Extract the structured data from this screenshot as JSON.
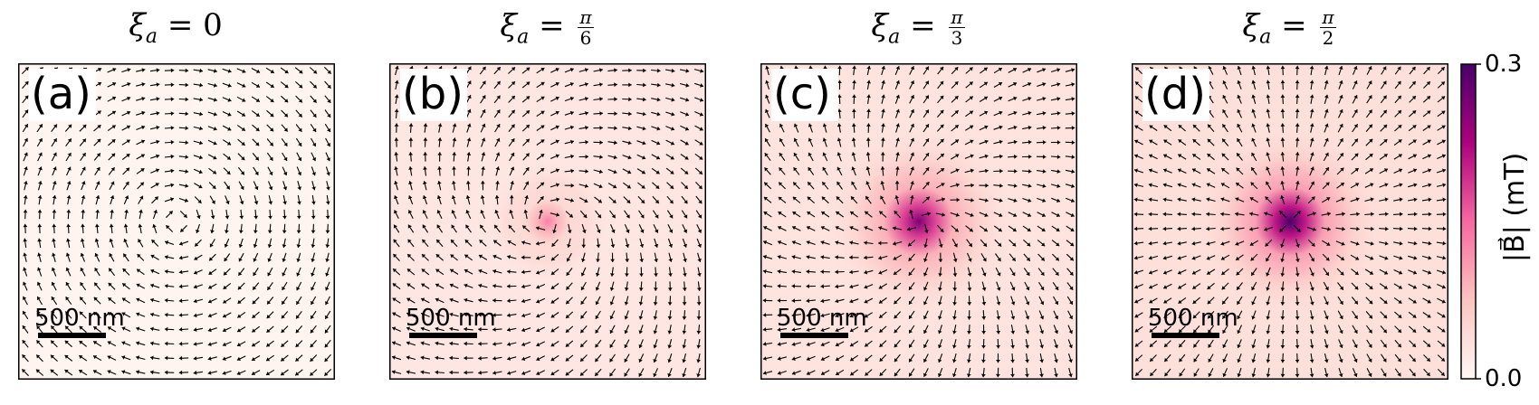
{
  "chart_data": {
    "type": "vector-field",
    "panels": [
      {
        "title_var": "ξ",
        "title_sub": "a",
        "title_eq": "=",
        "title_value": "0",
        "frac_num": "",
        "frac_den": "",
        "label": "(a)",
        "xi": 0,
        "peak": 0.0,
        "scalebar_text": "500 nm"
      },
      {
        "title_var": "ξ",
        "title_sub": "a",
        "title_eq": "=",
        "title_value": "",
        "frac_num": "π",
        "frac_den": "6",
        "label": "(b)",
        "xi": 0.5236,
        "peak": 0.13,
        "scalebar_text": "500 nm"
      },
      {
        "title_var": "ξ",
        "title_sub": "a",
        "title_eq": "=",
        "title_value": "",
        "frac_num": "π",
        "frac_den": "3",
        "label": "(c)",
        "xi": 1.0472,
        "peak": 0.26,
        "scalebar_text": "500 nm"
      },
      {
        "title_var": "ξ",
        "title_sub": "a",
        "title_eq": "=",
        "title_value": "",
        "frac_num": "π",
        "frac_den": "2",
        "label": "(d)",
        "xi": 1.5708,
        "peak": 0.3,
        "scalebar_text": "500 nm"
      }
    ],
    "colorbar": {
      "label": "|B⃗| (mT)",
      "min": 0.0,
      "max": 0.3,
      "tick_min_label": "0.0",
      "tick_max_label": "0.3",
      "colormap": "RdPu"
    },
    "colors": {
      "low": "#fff7f3",
      "mid": "#f768a1",
      "high": "#49006a"
    }
  }
}
